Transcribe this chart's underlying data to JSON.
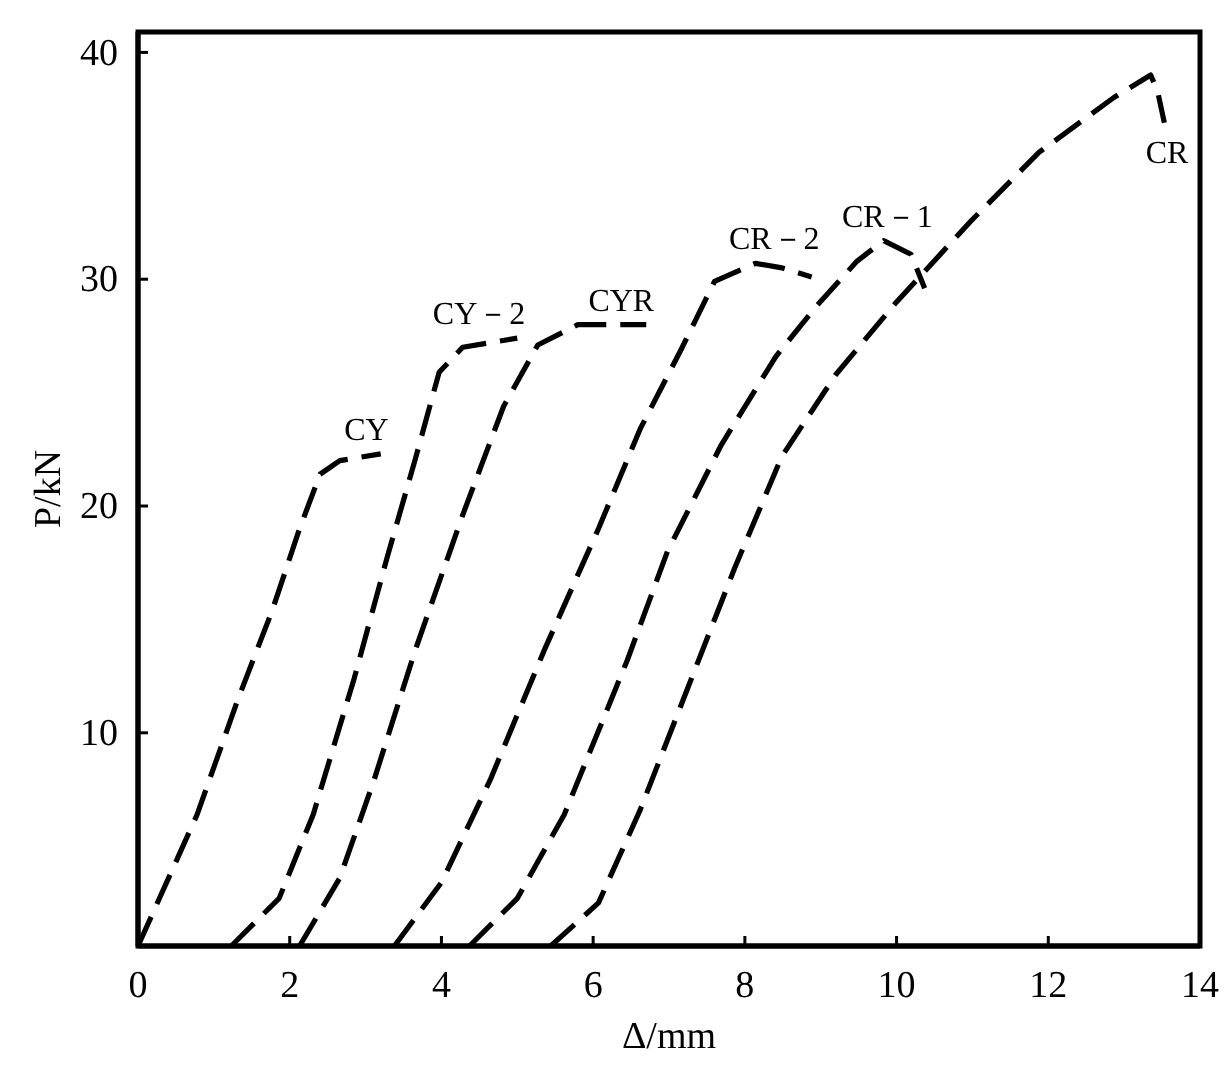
{
  "chart_data": {
    "type": "line",
    "xlabel": "Δ/mm",
    "ylabel": "P/kN",
    "xlim": [
      0,
      14
    ],
    "ylim": [
      0.6,
      40.9
    ],
    "xticks": [
      0,
      2,
      4,
      6,
      8,
      10,
      12,
      14
    ],
    "yticks": [
      10,
      20,
      30,
      40
    ],
    "grid": false,
    "marker": "none",
    "line_style": "dashed",
    "series": [
      {
        "name": "CY",
        "color": "#000000",
        "x": [
          0,
          0.78,
          1.32,
          1.77,
          2.13,
          2.4,
          2.66,
          3.2
        ],
        "values": [
          0.6,
          6.4,
          11.5,
          15.4,
          19.0,
          21.4,
          22.0,
          22.3
        ]
      },
      {
        "name": "CY－2",
        "color": "#000000",
        "x": [
          1.23,
          1.86,
          2.31,
          2.85,
          3.29,
          3.65,
          3.97,
          4.28,
          5.0
        ],
        "values": [
          0.6,
          2.7,
          6.4,
          12.4,
          17.8,
          22.0,
          25.9,
          27.0,
          27.4
        ]
      },
      {
        "name": "CYR",
        "color": "#000000",
        "x": [
          2.13,
          2.66,
          3.11,
          3.65,
          4.28,
          4.82,
          5.27,
          5.8,
          6.7
        ],
        "values": [
          0.6,
          3.6,
          7.9,
          13.6,
          19.6,
          24.4,
          27.1,
          28.0,
          28.0
        ]
      },
      {
        "name": "CR－2",
        "color": "#000000",
        "x": [
          3.38,
          4.0,
          4.64,
          5.35,
          6.07,
          6.62,
          7.16,
          7.6,
          8.14,
          8.49,
          8.88
        ],
        "values": [
          0.6,
          3.4,
          7.9,
          13.6,
          19.0,
          23.4,
          26.9,
          29.9,
          30.7,
          30.5,
          30.1
        ]
      },
      {
        "name": "CR－1",
        "color": "#000000",
        "x": [
          4.37,
          5.0,
          5.62,
          6.45,
          6.98,
          7.69,
          8.41,
          8.94,
          9.48,
          9.83,
          10.19,
          10.37
        ],
        "values": [
          0.6,
          2.7,
          6.4,
          13.2,
          18.0,
          22.7,
          26.6,
          28.8,
          30.8,
          31.7,
          31.1,
          29.6
        ]
      },
      {
        "name": "CR",
        "color": "#000000",
        "x": [
          5.44,
          6.07,
          6.62,
          7.25,
          7.87,
          8.49,
          9.2,
          10.0,
          10.99,
          11.88,
          12.86,
          13.35,
          13.44,
          13.53
        ],
        "values": [
          0.6,
          2.5,
          6.6,
          12.0,
          17.3,
          22.2,
          25.8,
          29.0,
          32.6,
          35.6,
          38.0,
          39.0,
          38.3,
          36.9
        ]
      }
    ]
  }
}
